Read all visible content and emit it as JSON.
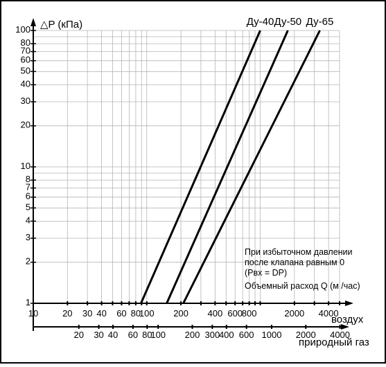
{
  "chart_data": {
    "type": "line",
    "y_title": "△P (кПа)",
    "x_scale": "log",
    "y_scale": "log",
    "ylim": [
      1,
      100
    ],
    "x_primary": {
      "label": "воздух",
      "lim": [
        10,
        5000
      ],
      "tick_labels": [
        {
          "value": 10,
          "text": "10"
        },
        {
          "value": 20,
          "text": "20"
        },
        {
          "value": 30,
          "text": "30"
        },
        {
          "value": 40,
          "text": "40"
        },
        {
          "value": 60,
          "text": "60"
        },
        {
          "value": 80,
          "text": "80"
        },
        {
          "value": 100,
          "text": "100"
        },
        {
          "value": 200,
          "text": "200"
        },
        {
          "value": 400,
          "text": "400"
        },
        {
          "value": 600,
          "text": "600"
        },
        {
          "value": 800,
          "text": "800"
        },
        {
          "value": 2000,
          "text": "2000"
        },
        {
          "value": 4000,
          "text": "4000"
        }
      ]
    },
    "x_secondary": {
      "label": "природный газ",
      "tick_labels": [
        {
          "value": 20,
          "text": "20"
        },
        {
          "value": 30,
          "text": "30"
        },
        {
          "value": 40,
          "text": "40"
        },
        {
          "value": 60,
          "text": "60"
        },
        {
          "value": 80,
          "text": "80"
        },
        {
          "value": 100,
          "text": "100"
        },
        {
          "value": 200,
          "text": "200"
        },
        {
          "value": 300,
          "text": "300"
        },
        {
          "value": 400,
          "text": "400"
        },
        {
          "value": 600,
          "text": "600"
        },
        {
          "value": 1000,
          "text": "1000"
        },
        {
          "value": 2000,
          "text": "2000"
        },
        {
          "value": 4000,
          "text": "4000"
        }
      ]
    },
    "y_tick_labels": [
      {
        "value": 1,
        "text": "1"
      },
      {
        "value": 2,
        "text": "2"
      },
      {
        "value": 3,
        "text": "3"
      },
      {
        "value": 4,
        "text": "4"
      },
      {
        "value": 5,
        "text": "5"
      },
      {
        "value": 6,
        "text": "6"
      },
      {
        "value": 7,
        "text": "7"
      },
      {
        "value": 8,
        "text": "8"
      },
      {
        "value": 10,
        "text": "10"
      },
      {
        "value": 20,
        "text": "20"
      },
      {
        "value": 30,
        "text": "30"
      },
      {
        "value": 40,
        "text": "40"
      },
      {
        "value": 50,
        "text": "50"
      },
      {
        "value": 60,
        "text": "60"
      },
      {
        "value": 70,
        "text": "70"
      },
      {
        "value": 80,
        "text": "80"
      },
      {
        "value": 100,
        "text": "100"
      }
    ],
    "series": [
      {
        "name": "Ду-40",
        "points": [
          [
            89,
            1
          ],
          [
            1000,
            100
          ]
        ]
      },
      {
        "name": "Ду-50",
        "points": [
          [
            150,
            1
          ],
          [
            1750,
            100
          ]
        ]
      },
      {
        "name": "Ду-65",
        "points": [
          [
            210,
            1
          ],
          [
            3350,
            100
          ]
        ]
      }
    ],
    "annotations": [
      "При избыточном давлении",
      "после клапана равным 0",
      "(Pвх = DP)",
      "Объемный расход Q (м /час)"
    ],
    "grid": true
  }
}
